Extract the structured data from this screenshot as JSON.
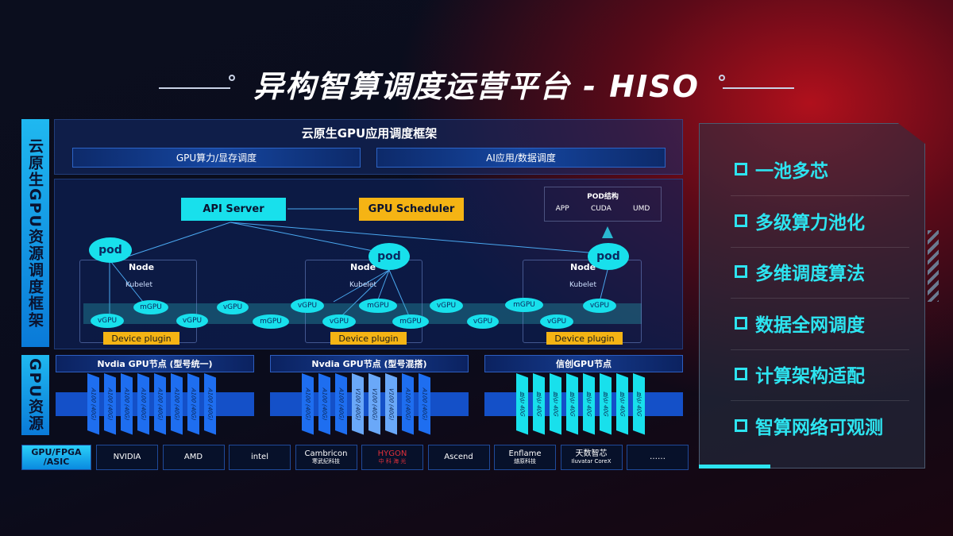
{
  "title": "异构智算调度运营平台 - HISO",
  "left_labels": {
    "framework": "云原生GPU资源调度框架",
    "resources": "GPU资源"
  },
  "top_panel": {
    "title": "云原生GPU应用调度框架",
    "sub1": "GPU算力/显存调度",
    "sub2": "AI应用/数据调度"
  },
  "diagram": {
    "api_server": "API Server",
    "gpu_scheduler": "GPU Scheduler",
    "pod_struct": {
      "title": "POD结构",
      "items": [
        "APP",
        "CUDA",
        "UMD"
      ]
    },
    "pod": "pod",
    "node": "Node",
    "kubelet": "Kubelet",
    "device_plugin": "Device plugin",
    "vgpu": "vGPU",
    "mgpu": "mGPU"
  },
  "gpu_groups": [
    {
      "title": "Nvdia GPU节点 (型号统一)",
      "cards": [
        "A100 (40G)",
        "A100 (40G)",
        "A100 (40G)",
        "A100 (40G)",
        "A100 (40G)",
        "A100 (40G)",
        "A100 (40G)",
        "A100 (40G)"
      ]
    },
    {
      "title": "Nvdia GPU节点 (型号混搭)",
      "cards": [
        "A100 (40G)",
        "A100 (40G)",
        "A100 (40G)",
        "V100 (40G)",
        "V100 (40G)",
        "V100 (40G)",
        "A100 (40G)",
        "A100 (40G)"
      ]
    },
    {
      "title": "信创GPU节点",
      "cards": [
        "昆仑 40G",
        "昆仑 40G",
        "昆仑 40G",
        "昆仑 40G",
        "昆仑 40G",
        "昆仑 40G",
        "昆仑 40G",
        "昆仑 40G"
      ]
    }
  ],
  "vendors": {
    "label": "GPU/FPGA /ASIC",
    "items": [
      {
        "name": "NVIDIA"
      },
      {
        "name": "AMD"
      },
      {
        "name": "intel"
      },
      {
        "name": "Cambricon",
        "sub": "寒武纪科技"
      },
      {
        "name": "HYGON",
        "sub": "中 科 海 光"
      },
      {
        "name": "Ascend"
      },
      {
        "name": "Enflame",
        "sub": "燧原科技"
      },
      {
        "name": "天数智芯",
        "sub": "Iluvatar CoreX"
      },
      {
        "name": "……"
      }
    ]
  },
  "features": [
    "一池多芯",
    "多级算力池化",
    "多维调度算法",
    "数据全网调度",
    "计算架构适配",
    "智算网络可观测"
  ],
  "colors": {
    "cyan": "#18e0ec",
    "orange": "#f5b414",
    "blue": "#1450c8",
    "red_glow": "#b0101c"
  }
}
